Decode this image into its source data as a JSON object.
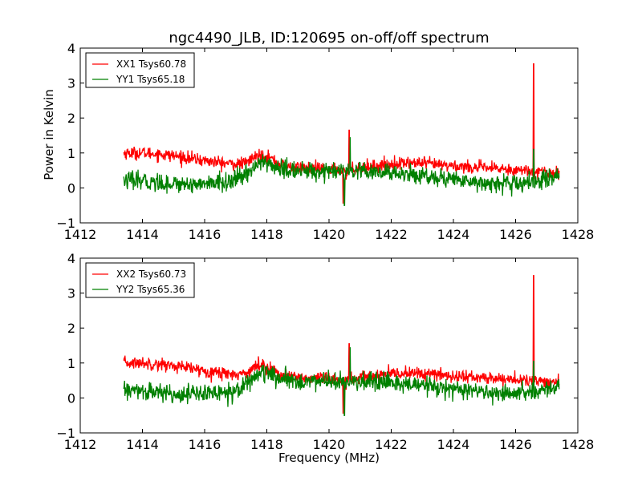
{
  "chart_data": [
    {
      "type": "line",
      "title": "ngc4490_JLB, ID:120695 on-off/off spectrum",
      "xlabel": "",
      "ylabel": "Power in Kelvin",
      "xlim": [
        1412,
        1428
      ],
      "ylim": [
        -1,
        4
      ],
      "x_ticks": [
        "1412",
        "1414",
        "1416",
        "1418",
        "1420",
        "1422",
        "1424",
        "1426",
        "1428"
      ],
      "y_ticks": [
        "−1",
        "0",
        "1",
        "2",
        "3",
        "4"
      ],
      "legend": "top-left",
      "grid": false,
      "x_range": [
        1413.4,
        1427.4
      ],
      "series": [
        {
          "name": "XX1 Tsys60.78",
          "color": "#ff0000",
          "baseline": [
            [
              1413.4,
              1.0
            ],
            [
              1414.0,
              1.0
            ],
            [
              1414.5,
              0.97
            ],
            [
              1415.0,
              0.92
            ],
            [
              1415.5,
              0.85
            ],
            [
              1416.0,
              0.78
            ],
            [
              1416.5,
              0.72
            ],
            [
              1417.0,
              0.68
            ],
            [
              1417.3,
              0.7
            ],
            [
              1417.6,
              0.88
            ],
            [
              1417.9,
              0.97
            ],
            [
              1418.2,
              0.8
            ],
            [
              1418.6,
              0.6
            ],
            [
              1419.0,
              0.58
            ],
            [
              1419.5,
              0.55
            ],
            [
              1420.0,
              0.55
            ],
            [
              1420.4,
              0.5
            ],
            [
              1421.0,
              0.58
            ],
            [
              1421.5,
              0.63
            ],
            [
              1422.0,
              0.68
            ],
            [
              1422.5,
              0.72
            ],
            [
              1423.0,
              0.7
            ],
            [
              1423.5,
              0.66
            ],
            [
              1424.0,
              0.63
            ],
            [
              1424.5,
              0.6
            ],
            [
              1425.0,
              0.57
            ],
            [
              1425.5,
              0.55
            ],
            [
              1426.0,
              0.52
            ],
            [
              1426.5,
              0.48
            ],
            [
              1427.0,
              0.45
            ],
            [
              1427.4,
              0.45
            ]
          ],
          "noise": 0.09,
          "features": [
            {
              "x": 1420.45,
              "value": -0.45
            },
            {
              "x": 1420.55,
              "value": 0.25
            },
            {
              "x": 1420.65,
              "value": 1.65
            },
            {
              "x": 1426.58,
              "value": 3.55
            }
          ]
        },
        {
          "name": "YY1 Tsys65.18",
          "color": "#008000",
          "baseline": [
            [
              1413.4,
              0.22
            ],
            [
              1414.0,
              0.18
            ],
            [
              1414.5,
              0.15
            ],
            [
              1415.0,
              0.12
            ],
            [
              1415.5,
              0.12
            ],
            [
              1416.0,
              0.12
            ],
            [
              1416.5,
              0.15
            ],
            [
              1417.0,
              0.22
            ],
            [
              1417.3,
              0.38
            ],
            [
              1417.6,
              0.62
            ],
            [
              1417.9,
              0.75
            ],
            [
              1418.2,
              0.62
            ],
            [
              1418.6,
              0.5
            ],
            [
              1419.0,
              0.48
            ],
            [
              1419.5,
              0.48
            ],
            [
              1420.0,
              0.48
            ],
            [
              1420.4,
              0.45
            ],
            [
              1421.0,
              0.45
            ],
            [
              1421.5,
              0.42
            ],
            [
              1422.0,
              0.42
            ],
            [
              1422.5,
              0.4
            ],
            [
              1423.0,
              0.35
            ],
            [
              1423.5,
              0.3
            ],
            [
              1424.0,
              0.25
            ],
            [
              1424.5,
              0.2
            ],
            [
              1425.0,
              0.15
            ],
            [
              1425.5,
              0.12
            ],
            [
              1426.0,
              0.1
            ],
            [
              1426.5,
              0.15
            ],
            [
              1427.0,
              0.28
            ],
            [
              1427.4,
              0.32
            ]
          ],
          "noise": 0.13,
          "features": [
            {
              "x": 1420.5,
              "value": -0.5
            },
            {
              "x": 1420.6,
              "value": 0.5
            },
            {
              "x": 1420.68,
              "value": 1.45
            },
            {
              "x": 1426.58,
              "value": 1.1
            }
          ]
        }
      ]
    },
    {
      "type": "line",
      "title": "",
      "xlabel": "Frequency (MHz)",
      "ylabel": "",
      "xlim": [
        1412,
        1428
      ],
      "ylim": [
        -1,
        4
      ],
      "x_ticks": [
        "1412",
        "1414",
        "1416",
        "1418",
        "1420",
        "1422",
        "1424",
        "1426",
        "1428"
      ],
      "y_ticks": [
        "−1",
        "0",
        "1",
        "2",
        "3",
        "4"
      ],
      "legend": "top-left",
      "grid": false,
      "x_range": [
        1413.4,
        1427.4
      ],
      "series": [
        {
          "name": "XX2 Tsys60.73",
          "color": "#ff0000",
          "baseline": [
            [
              1413.4,
              1.0
            ],
            [
              1414.0,
              1.0
            ],
            [
              1414.5,
              0.97
            ],
            [
              1415.0,
              0.92
            ],
            [
              1415.5,
              0.85
            ],
            [
              1416.0,
              0.78
            ],
            [
              1416.5,
              0.72
            ],
            [
              1417.0,
              0.68
            ],
            [
              1417.3,
              0.7
            ],
            [
              1417.6,
              0.88
            ],
            [
              1417.9,
              0.97
            ],
            [
              1418.2,
              0.8
            ],
            [
              1418.6,
              0.6
            ],
            [
              1419.0,
              0.58
            ],
            [
              1419.5,
              0.55
            ],
            [
              1420.0,
              0.55
            ],
            [
              1420.4,
              0.5
            ],
            [
              1421.0,
              0.58
            ],
            [
              1421.5,
              0.63
            ],
            [
              1422.0,
              0.68
            ],
            [
              1422.5,
              0.72
            ],
            [
              1423.0,
              0.7
            ],
            [
              1423.5,
              0.66
            ],
            [
              1424.0,
              0.63
            ],
            [
              1424.5,
              0.6
            ],
            [
              1425.0,
              0.57
            ],
            [
              1425.5,
              0.55
            ],
            [
              1426.0,
              0.52
            ],
            [
              1426.5,
              0.48
            ],
            [
              1427.0,
              0.45
            ],
            [
              1427.4,
              0.45
            ]
          ],
          "noise": 0.09,
          "features": [
            {
              "x": 1420.45,
              "value": -0.45
            },
            {
              "x": 1420.55,
              "value": 0.25
            },
            {
              "x": 1420.65,
              "value": 1.55
            },
            {
              "x": 1426.58,
              "value": 3.5
            }
          ]
        },
        {
          "name": "YY2 Tsys65.36",
          "color": "#008000",
          "baseline": [
            [
              1413.4,
              0.22
            ],
            [
              1414.0,
              0.18
            ],
            [
              1414.5,
              0.15
            ],
            [
              1415.0,
              0.12
            ],
            [
              1415.5,
              0.12
            ],
            [
              1416.0,
              0.12
            ],
            [
              1416.5,
              0.15
            ],
            [
              1417.0,
              0.22
            ],
            [
              1417.3,
              0.38
            ],
            [
              1417.6,
              0.62
            ],
            [
              1417.9,
              0.75
            ],
            [
              1418.2,
              0.62
            ],
            [
              1418.6,
              0.5
            ],
            [
              1419.0,
              0.48
            ],
            [
              1419.5,
              0.48
            ],
            [
              1420.0,
              0.48
            ],
            [
              1420.4,
              0.45
            ],
            [
              1421.0,
              0.45
            ],
            [
              1421.5,
              0.42
            ],
            [
              1422.0,
              0.42
            ],
            [
              1422.5,
              0.4
            ],
            [
              1423.0,
              0.35
            ],
            [
              1423.5,
              0.3
            ],
            [
              1424.0,
              0.25
            ],
            [
              1424.5,
              0.2
            ],
            [
              1425.0,
              0.15
            ],
            [
              1425.5,
              0.12
            ],
            [
              1426.0,
              0.1
            ],
            [
              1426.5,
              0.15
            ],
            [
              1427.0,
              0.28
            ],
            [
              1427.4,
              0.32
            ]
          ],
          "noise": 0.13,
          "features": [
            {
              "x": 1420.5,
              "value": -0.5
            },
            {
              "x": 1420.6,
              "value": 0.5
            },
            {
              "x": 1420.68,
              "value": 1.45
            },
            {
              "x": 1426.58,
              "value": 1.05
            }
          ]
        }
      ]
    }
  ]
}
